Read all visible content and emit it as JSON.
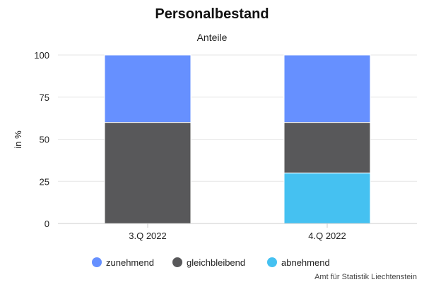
{
  "chart_data": {
    "type": "bar",
    "stacked": true,
    "title": "Personalbestand",
    "subtitle": "Anteile",
    "xlabel": "",
    "ylabel": "in %",
    "ylim": [
      0,
      100
    ],
    "yticks": [
      0,
      25,
      50,
      75,
      100
    ],
    "categories": [
      "3.Q 2022",
      "4.Q 2022"
    ],
    "series": [
      {
        "name": "abnehmend",
        "color": "#45c1f1",
        "values": [
          0,
          30
        ]
      },
      {
        "name": "gleichbleibend",
        "color": "#58585a",
        "values": [
          60,
          30
        ]
      },
      {
        "name": "zunehmend",
        "color": "#6690ff",
        "values": [
          40,
          40
        ]
      }
    ],
    "legend_order": [
      "zunehmend",
      "gleichbleibend",
      "abnehmend"
    ],
    "legend_position": "bottom",
    "grid": true
  },
  "credit": "Amt für Statistik Liechtenstein"
}
